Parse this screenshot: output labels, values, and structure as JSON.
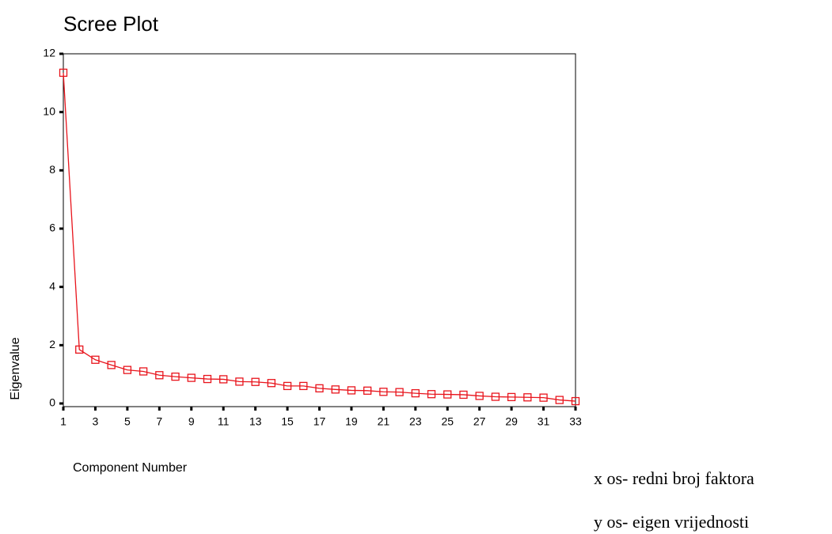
{
  "chart_data": {
    "type": "line",
    "title": "Scree Plot",
    "x_label": "Component Number",
    "y_label": "Eigenvalue",
    "x": [
      1,
      2,
      3,
      4,
      5,
      6,
      7,
      8,
      9,
      10,
      11,
      12,
      13,
      14,
      15,
      16,
      17,
      18,
      19,
      20,
      21,
      22,
      23,
      24,
      25,
      26,
      27,
      28,
      29,
      30,
      31,
      32,
      33
    ],
    "series": [
      {
        "name": "Eigenvalue",
        "color": "#e8141c",
        "values": [
          11.35,
          1.85,
          1.5,
          1.32,
          1.15,
          1.1,
          0.97,
          0.92,
          0.88,
          0.84,
          0.83,
          0.75,
          0.74,
          0.7,
          0.6,
          0.6,
          0.52,
          0.48,
          0.45,
          0.44,
          0.4,
          0.39,
          0.35,
          0.32,
          0.31,
          0.3,
          0.26,
          0.23,
          0.22,
          0.21,
          0.2,
          0.12,
          0.08
        ]
      }
    ],
    "xlim": [
      1,
      33
    ],
    "xticks": [
      1,
      3,
      5,
      7,
      9,
      11,
      13,
      15,
      17,
      19,
      21,
      23,
      25,
      27,
      29,
      31,
      33
    ],
    "ylim": [
      0,
      12
    ],
    "yticks": [
      0,
      2,
      4,
      6,
      8,
      10,
      12
    ],
    "annotations": [
      "x os- redni broj faktora",
      "y os- eigen vrijednosti"
    ]
  }
}
